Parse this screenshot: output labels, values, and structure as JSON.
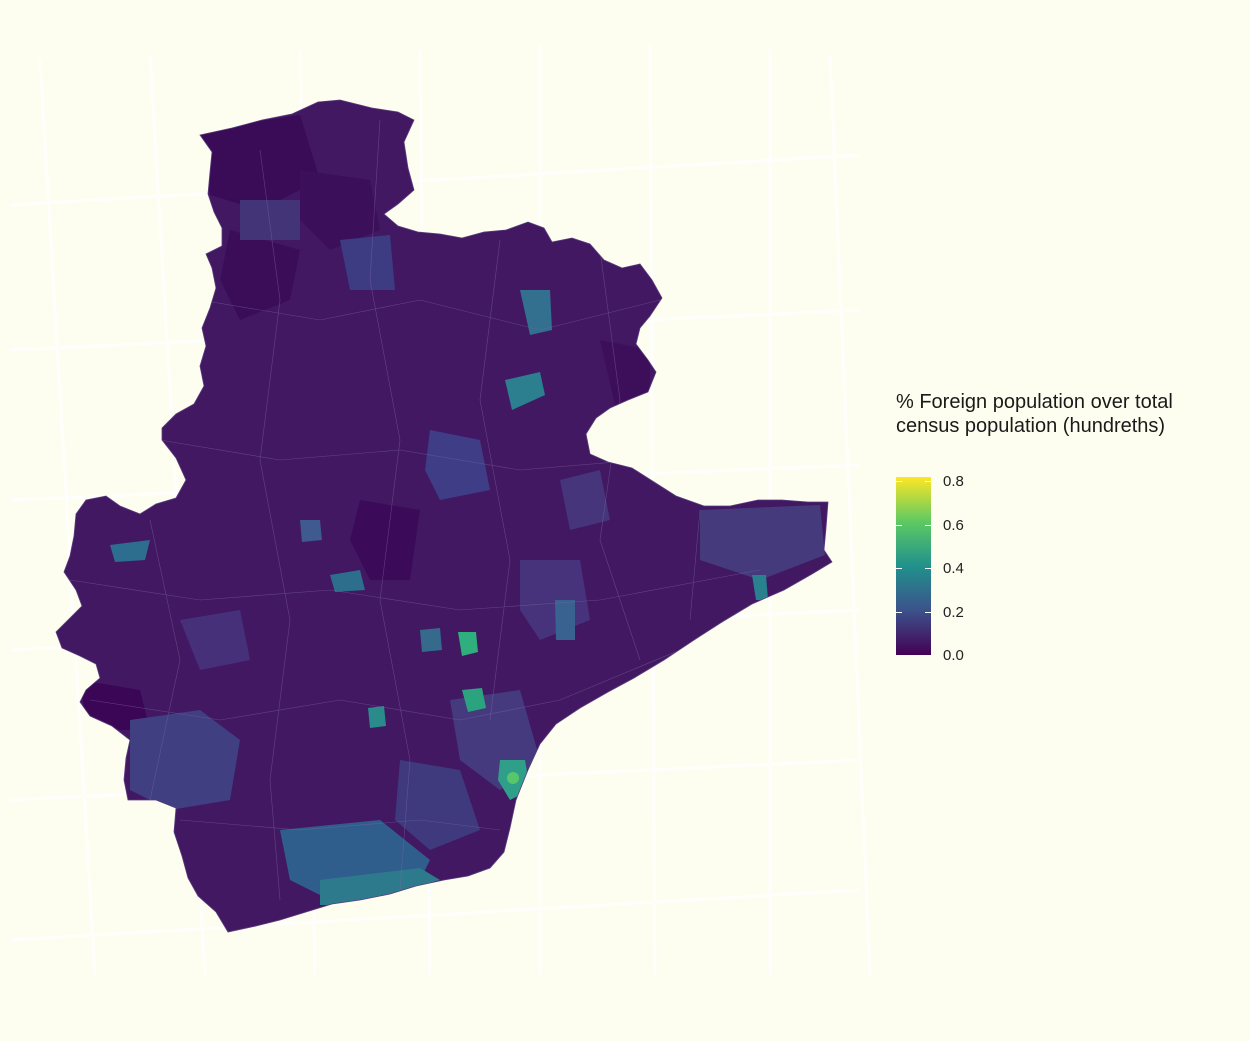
{
  "legend": {
    "title_line1": "% Foreign population over total",
    "title_line2": "census population (hundreths)",
    "min": 0.0,
    "max": 0.82,
    "ticks": [
      {
        "value": 0.0,
        "label": "0.0"
      },
      {
        "value": 0.2,
        "label": "0.2"
      },
      {
        "value": 0.4,
        "label": "0.4"
      },
      {
        "value": 0.6,
        "label": "0.6"
      },
      {
        "value": 0.8,
        "label": "0.8"
      }
    ],
    "palette": [
      "#440154",
      "#3b528b",
      "#21918c",
      "#5ec962",
      "#fde725"
    ]
  },
  "map": {
    "background_color": "#fefef0",
    "region_fill_dominant": "#3f1a62",
    "boundary_color": "#8a6fa6",
    "highlight_colors": {
      "low": "#482a6e",
      "mid_low": "#3c4e8a",
      "mid": "#2b7f8e",
      "high": "#29b17c",
      "very_high": "#6ad05a"
    }
  }
}
